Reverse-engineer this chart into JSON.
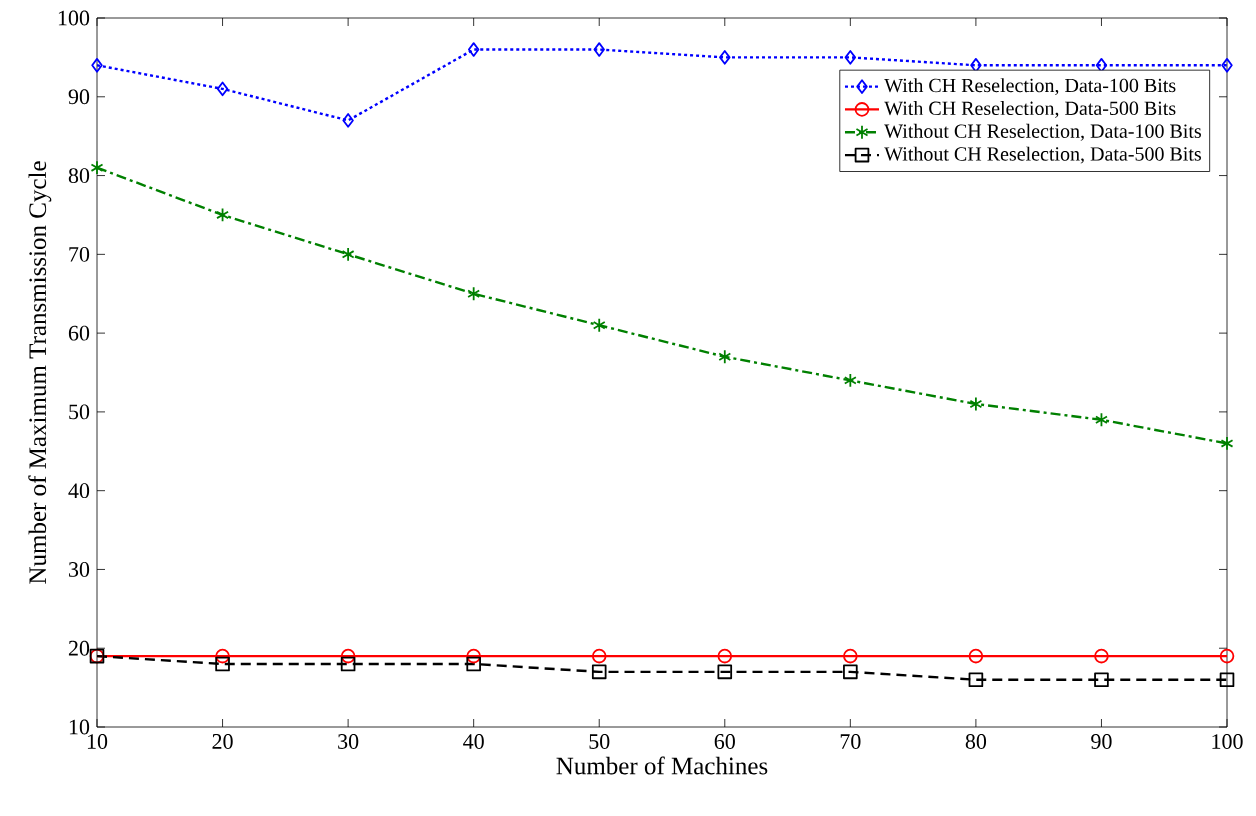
{
  "chart_data": {
    "type": "line",
    "xlabel": "Number of Machines",
    "ylabel": "Number of Maximum Transmission Cycle",
    "x": [
      10,
      20,
      30,
      40,
      50,
      60,
      70,
      80,
      90,
      100
    ],
    "series": [
      {
        "name": "With CH Reselection, Data-100 Bits",
        "color": "#0000ff",
        "marker": "diamond",
        "line_style": "dotted",
        "values": [
          94,
          91,
          87,
          96,
          96,
          95,
          95,
          94,
          94,
          94
        ]
      },
      {
        "name": "With CH Reselection, Data-500 Bits",
        "color": "#ff0000",
        "marker": "circle",
        "line_style": "solid",
        "values": [
          19,
          19,
          19,
          19,
          19,
          19,
          19,
          19,
          19,
          19
        ]
      },
      {
        "name": "Without CH Reselection, Data-100 Bits",
        "color": "#008000",
        "marker": "cross",
        "line_style": "dashdot",
        "values": [
          81,
          75,
          70,
          65,
          61,
          57,
          54,
          51,
          49,
          46
        ]
      },
      {
        "name": "Without CH Reselection, Data-500 Bits",
        "color": "#000000",
        "marker": "square",
        "line_style": "dashed",
        "values": [
          19,
          18,
          18,
          18,
          17,
          17,
          17,
          16,
          16,
          16
        ]
      }
    ],
    "xlim": [
      10,
      100
    ],
    "ylim": [
      10,
      100
    ],
    "xticks": [
      10,
      20,
      30,
      40,
      50,
      60,
      70,
      80,
      90,
      100
    ],
    "yticks": [
      10,
      20,
      30,
      40,
      50,
      60,
      70,
      80,
      90,
      100
    ],
    "grid": false,
    "legend": "top right"
  }
}
